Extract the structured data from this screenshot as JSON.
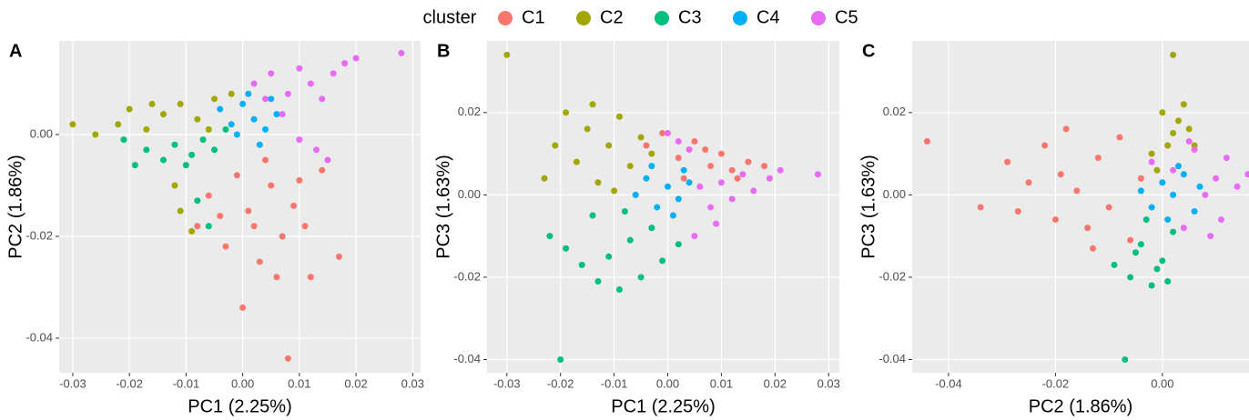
{
  "chart_data": [
    {
      "type": "scatter",
      "panel_label": "A",
      "legend_title": "cluster",
      "legend_position": "top",
      "grid": true,
      "xlabel": "PC1 (2.25%)",
      "ylabel": "PC2 (1.86%)",
      "xlim": [
        -0.0324,
        0.0314
      ],
      "ylim": [
        -0.0468,
        0.0184
      ],
      "xticks": [
        -0.03,
        -0.02,
        -0.01,
        {
          "value": 0,
          "label": "0.00"
        },
        0.01,
        0.02,
        0.03
      ],
      "yticks": [
        -0.04,
        -0.02,
        {
          "value": 0,
          "label": "0.00"
        }
      ],
      "series": [
        {
          "name": "C1",
          "color": "#f8766d",
          "x": [
            -0.008,
            -0.006,
            -0.003,
            -0.001,
            0.001,
            0.003,
            0.005,
            0.007,
            0.009,
            0.011,
            0.014,
            0.017,
            0.004,
            -0.004,
            0.006,
            0.012,
            0.0,
            0.008,
            0.002,
            0.01
          ],
          "y": [
            -0.018,
            -0.012,
            -0.022,
            -0.008,
            -0.015,
            -0.025,
            -0.01,
            -0.02,
            -0.014,
            -0.018,
            -0.007,
            -0.024,
            -0.005,
            -0.016,
            -0.028,
            -0.028,
            -0.034,
            -0.044,
            -0.018,
            -0.009
          ]
        },
        {
          "name": "C2",
          "color": "#a3a500",
          "x": [
            -0.03,
            -0.026,
            -0.022,
            -0.02,
            -0.017,
            -0.014,
            -0.011,
            -0.008,
            -0.005,
            -0.002,
            -0.012,
            -0.011,
            -0.009,
            -0.016,
            -0.006
          ],
          "y": [
            0.002,
            0.0,
            0.002,
            0.005,
            0.001,
            0.004,
            0.006,
            0.003,
            0.007,
            0.008,
            -0.01,
            -0.015,
            -0.019,
            0.006,
            0.001
          ]
        },
        {
          "name": "C3",
          "color": "#00bf7d",
          "x": [
            -0.021,
            -0.019,
            -0.017,
            -0.014,
            -0.012,
            -0.009,
            -0.007,
            -0.005,
            -0.003,
            -0.008,
            -0.006,
            -0.01
          ],
          "y": [
            -0.001,
            -0.006,
            -0.003,
            -0.005,
            -0.002,
            -0.004,
            -0.001,
            -0.003,
            0.001,
            -0.013,
            -0.018,
            -0.006
          ]
        },
        {
          "name": "C4",
          "color": "#00b0f6",
          "x": [
            -0.004,
            -0.002,
            0.0,
            0.002,
            0.004,
            0.006,
            -0.001,
            0.003,
            0.001,
            0.005
          ],
          "y": [
            0.005,
            0.002,
            0.006,
            0.003,
            0.001,
            0.004,
            0.0,
            -0.002,
            0.008,
            0.007
          ]
        },
        {
          "name": "C5",
          "color": "#e76bf3",
          "x": [
            0.002,
            0.005,
            0.008,
            0.01,
            0.012,
            0.014,
            0.016,
            0.018,
            0.02,
            0.013,
            0.01,
            0.015,
            0.007,
            0.028,
            0.004
          ],
          "y": [
            0.01,
            0.012,
            0.008,
            0.013,
            0.01,
            0.007,
            0.012,
            0.014,
            0.015,
            -0.003,
            -0.001,
            -0.005,
            0.004,
            0.016,
            0.007
          ]
        }
      ]
    },
    {
      "type": "scatter",
      "panel_label": "B",
      "grid": true,
      "xlabel": "PC1 (2.25%)",
      "ylabel": "PC3 (1.63%)",
      "xlim": [
        -0.0337,
        0.032
      ],
      "ylim": [
        -0.0432,
        0.0374
      ],
      "xticks": [
        -0.03,
        -0.02,
        -0.01,
        {
          "value": 0,
          "label": "0.00"
        },
        0.01,
        0.02,
        0.03
      ],
      "yticks": [
        -0.04,
        -0.02,
        {
          "value": 0,
          "label": "0.00"
        },
        0.02
      ],
      "series": [
        {
          "color": "#f8766d",
          "x": [
            -0.004,
            -0.001,
            0.002,
            0.005,
            0.008,
            0.01,
            0.012,
            0.015,
            0.018,
            0.003,
            0.007,
            0.013
          ],
          "y": [
            0.012,
            0.015,
            0.009,
            0.013,
            0.007,
            0.01,
            0.006,
            0.008,
            0.007,
            0.004,
            0.011,
            0.004
          ]
        },
        {
          "color": "#a3a500",
          "x": [
            -0.03,
            -0.023,
            -0.021,
            -0.019,
            -0.017,
            -0.015,
            -0.013,
            -0.011,
            -0.009,
            -0.007,
            -0.005,
            -0.014,
            -0.01,
            -0.003
          ],
          "y": [
            0.034,
            0.004,
            0.012,
            0.02,
            0.008,
            0.016,
            0.003,
            0.012,
            0.019,
            0.007,
            0.014,
            0.022,
            0.001,
            0.01
          ]
        },
        {
          "color": "#00bf7d",
          "x": [
            -0.02,
            -0.022,
            -0.019,
            -0.016,
            -0.013,
            -0.011,
            -0.009,
            -0.007,
            -0.005,
            -0.003,
            -0.001,
            0.002,
            -0.014,
            -0.008
          ],
          "y": [
            -0.04,
            -0.01,
            -0.013,
            -0.017,
            -0.021,
            -0.015,
            -0.023,
            -0.011,
            -0.02,
            -0.008,
            -0.016,
            -0.012,
            -0.005,
            -0.004
          ]
        },
        {
          "color": "#00b0f6",
          "x": [
            -0.006,
            -0.004,
            -0.002,
            0.0,
            0.002,
            0.004,
            0.001,
            -0.003,
            0.003
          ],
          "y": [
            0.0,
            0.004,
            -0.003,
            0.002,
            -0.001,
            0.003,
            -0.005,
            0.007,
            0.006
          ]
        },
        {
          "color": "#e76bf3",
          "x": [
            0.0,
            0.004,
            0.006,
            0.008,
            0.01,
            0.012,
            0.014,
            0.016,
            0.019,
            0.021,
            0.005,
            0.009,
            0.028,
            0.002
          ],
          "y": [
            0.015,
            0.011,
            0.002,
            -0.003,
            0.003,
            -0.001,
            0.005,
            0.001,
            0.004,
            0.006,
            -0.01,
            -0.007,
            0.005,
            0.013
          ]
        }
      ]
    },
    {
      "type": "scatter",
      "panel_label": "C",
      "grid": true,
      "xlabel": "PC2 (1.86%)",
      "ylabel": "PC3 (1.63%)",
      "xlim": [
        -0.0468,
        0.0162
      ],
      "ylim": [
        -0.0432,
        0.0374
      ],
      "xticks": [
        -0.04,
        -0.02,
        {
          "value": 0,
          "label": "0.00"
        }
      ],
      "yticks": [
        -0.04,
        -0.02,
        {
          "value": 0,
          "label": "0.00"
        },
        0.02
      ],
      "series": [
        {
          "color": "#f8766d",
          "x": [
            -0.044,
            -0.034,
            -0.029,
            -0.027,
            -0.025,
            -0.022,
            -0.02,
            -0.018,
            -0.016,
            -0.014,
            -0.012,
            -0.01,
            -0.008,
            -0.006,
            -0.004,
            -0.019,
            -0.013
          ],
          "y": [
            0.013,
            -0.003,
            0.008,
            -0.004,
            0.003,
            0.012,
            -0.006,
            0.016,
            0.001,
            -0.008,
            0.009,
            -0.003,
            0.014,
            -0.011,
            0.004,
            0.005,
            -0.013
          ]
        },
        {
          "color": "#a3a500",
          "x": [
            0.002,
            -0.002,
            0.0,
            0.002,
            0.004,
            0.006,
            0.003,
            -0.001,
            0.005,
            0.001
          ],
          "y": [
            0.034,
            0.01,
            0.02,
            0.015,
            0.022,
            0.012,
            0.018,
            0.006,
            0.016,
            0.012
          ]
        },
        {
          "color": "#00bf7d",
          "x": [
            -0.007,
            -0.009,
            -0.006,
            -0.004,
            -0.002,
            0.0,
            0.002,
            -0.003,
            -0.001,
            -0.005,
            0.001
          ],
          "y": [
            -0.04,
            -0.017,
            -0.02,
            -0.012,
            -0.022,
            -0.016,
            -0.009,
            -0.006,
            -0.018,
            -0.014,
            -0.021
          ]
        },
        {
          "color": "#00b0f6",
          "x": [
            -0.004,
            -0.002,
            0.0,
            0.002,
            0.004,
            0.006,
            0.001,
            0.003,
            0.007
          ],
          "y": [
            0.001,
            -0.003,
            0.003,
            0.0,
            0.005,
            -0.004,
            -0.006,
            0.007,
            0.002
          ]
        },
        {
          "color": "#e76bf3",
          "x": [
            -0.002,
            0.002,
            0.004,
            0.006,
            0.008,
            0.01,
            0.012,
            0.014,
            0.016,
            0.009,
            0.011,
            0.005
          ],
          "y": [
            0.008,
            0.006,
            -0.008,
            0.011,
            0.0,
            0.004,
            0.009,
            0.002,
            0.005,
            -0.01,
            -0.006,
            0.013
          ]
        }
      ]
    }
  ]
}
